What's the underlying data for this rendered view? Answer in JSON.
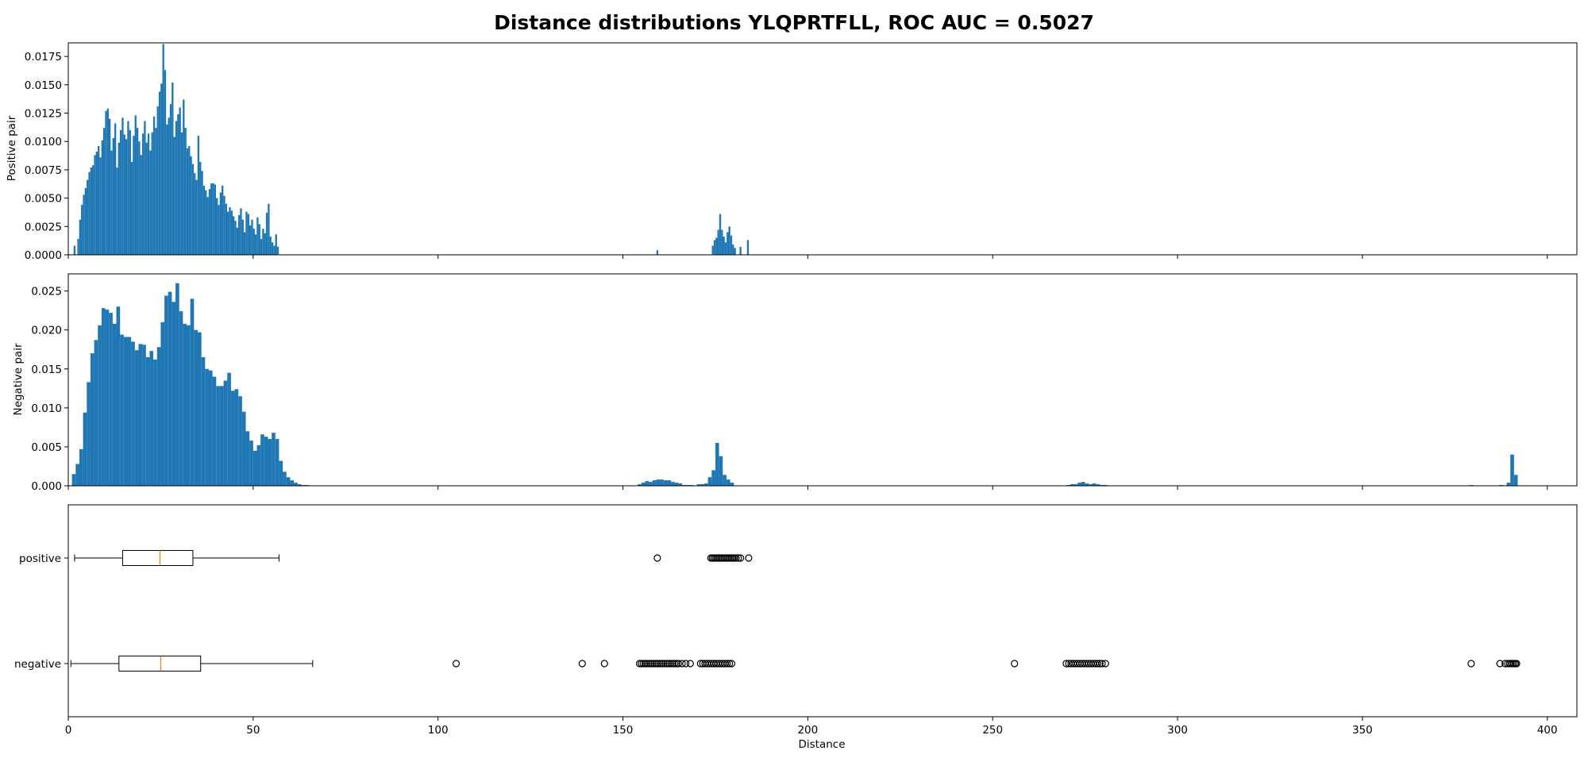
{
  "title": "Distance distributions YLQPRTFLL, ROC AUC = 0.5027",
  "chart_data": [
    {
      "type": "histogram",
      "panel": "positive-histogram",
      "ylabel": "Positive pair",
      "xlim": [
        0,
        408
      ],
      "ylim": [
        0,
        0.0187
      ],
      "yticks": [
        0.0,
        0.0025,
        0.005,
        0.0075,
        0.01,
        0.0125,
        0.015,
        0.0175
      ],
      "ytick_labels": [
        "0.0000",
        "0.0025",
        "0.0050",
        "0.0075",
        "0.0100",
        "0.0125",
        "0.0150",
        "0.0175"
      ],
      "bin_width": 0.5,
      "bars": [
        [
          1.7,
          0.0008
        ],
        [
          2.7,
          0.0014
        ],
        [
          3.2,
          0.0031
        ],
        [
          3.7,
          0.0044
        ],
        [
          4.2,
          0.0053
        ],
        [
          4.7,
          0.0059
        ],
        [
          5.2,
          0.0066
        ],
        [
          5.7,
          0.0073
        ],
        [
          6.2,
          0.0077
        ],
        [
          6.7,
          0.0079
        ],
        [
          7.2,
          0.0088
        ],
        [
          7.7,
          0.0091
        ],
        [
          8.2,
          0.0096
        ],
        [
          8.7,
          0.0086
        ],
        [
          9.2,
          0.0101
        ],
        [
          9.7,
          0.0112
        ],
        [
          10.2,
          0.0127
        ],
        [
          10.7,
          0.0129
        ],
        [
          11.2,
          0.012
        ],
        [
          11.7,
          0.0092
        ],
        [
          12.2,
          0.0103
        ],
        [
          12.7,
          0.0116
        ],
        [
          13.2,
          0.0077
        ],
        [
          13.7,
          0.0099
        ],
        [
          14.2,
          0.011
        ],
        [
          14.7,
          0.0121
        ],
        [
          15.2,
          0.0106
        ],
        [
          15.7,
          0.0102
        ],
        [
          16.2,
          0.0118
        ],
        [
          16.7,
          0.011
        ],
        [
          17.2,
          0.0082
        ],
        [
          17.7,
          0.0105
        ],
        [
          18.2,
          0.0123
        ],
        [
          18.7,
          0.0112
        ],
        [
          19.2,
          0.01
        ],
        [
          19.7,
          0.0088
        ],
        [
          20.2,
          0.0107
        ],
        [
          20.7,
          0.0118
        ],
        [
          21.2,
          0.0099
        ],
        [
          21.7,
          0.0107
        ],
        [
          22.2,
          0.0092
        ],
        [
          22.7,
          0.0108
        ],
        [
          23.2,
          0.0122
        ],
        [
          23.7,
          0.0112
        ],
        [
          24.2,
          0.0131
        ],
        [
          24.7,
          0.0144
        ],
        [
          25.2,
          0.0151
        ],
        [
          25.7,
          0.0186
        ],
        [
          26.2,
          0.0163
        ],
        [
          26.7,
          0.0115
        ],
        [
          27.2,
          0.0121
        ],
        [
          27.7,
          0.0133
        ],
        [
          28.2,
          0.0152
        ],
        [
          28.7,
          0.0104
        ],
        [
          29.2,
          0.0118
        ],
        [
          29.7,
          0.0124
        ],
        [
          30.2,
          0.013
        ],
        [
          30.7,
          0.0108
        ],
        [
          31.2,
          0.0137
        ],
        [
          31.7,
          0.0112
        ],
        [
          32.2,
          0.0094
        ],
        [
          32.7,
          0.0096
        ],
        [
          33.2,
          0.0087
        ],
        [
          33.7,
          0.008
        ],
        [
          34.2,
          0.0072
        ],
        [
          34.7,
          0.0066
        ],
        [
          35.2,
          0.0105
        ],
        [
          35.7,
          0.0082
        ],
        [
          36.2,
          0.0074
        ],
        [
          36.7,
          0.0061
        ],
        [
          37.2,
          0.0057
        ],
        [
          37.7,
          0.0051
        ],
        [
          38.2,
          0.0058
        ],
        [
          38.7,
          0.0063
        ],
        [
          39.2,
          0.0063
        ],
        [
          39.7,
          0.0062
        ],
        [
          40.2,
          0.005
        ],
        [
          40.7,
          0.0044
        ],
        [
          41.2,
          0.0055
        ],
        [
          41.7,
          0.0061
        ],
        [
          42.2,
          0.0052
        ],
        [
          42.7,
          0.0045
        ],
        [
          43.2,
          0.0038
        ],
        [
          43.7,
          0.0042
        ],
        [
          44.2,
          0.0039
        ],
        [
          44.7,
          0.0034
        ],
        [
          45.2,
          0.003
        ],
        [
          45.7,
          0.0024
        ],
        [
          46.2,
          0.0035
        ],
        [
          46.7,
          0.0041
        ],
        [
          47.2,
          0.0031
        ],
        [
          47.7,
          0.002
        ],
        [
          48.2,
          0.0038
        ],
        [
          48.7,
          0.0036
        ],
        [
          49.2,
          0.0026
        ],
        [
          49.7,
          0.0031
        ],
        [
          50.2,
          0.0023
        ],
        [
          50.7,
          0.0018
        ],
        [
          51.2,
          0.0033
        ],
        [
          51.7,
          0.0027
        ],
        [
          52.2,
          0.0014
        ],
        [
          52.7,
          0.0023
        ],
        [
          53.2,
          0.0019
        ],
        [
          53.7,
          0.0037
        ],
        [
          54.2,
          0.0045
        ],
        [
          54.7,
          0.0016
        ],
        [
          55.2,
          0.0011
        ],
        [
          55.7,
          0.0008
        ],
        [
          56.2,
          0.0018
        ],
        [
          56.7,
          0.0007
        ],
        [
          159.3,
          0.0004
        ],
        [
          174.3,
          0.0008
        ],
        [
          174.8,
          0.0013
        ],
        [
          175.3,
          0.0015
        ],
        [
          175.8,
          0.0022
        ],
        [
          176.3,
          0.0036
        ],
        [
          176.8,
          0.0022
        ],
        [
          177.3,
          0.0016
        ],
        [
          177.8,
          0.0011
        ],
        [
          178.3,
          0.002
        ],
        [
          178.8,
          0.0025
        ],
        [
          179.3,
          0.0017
        ],
        [
          179.8,
          0.0009
        ],
        [
          180.3,
          0.0006
        ],
        [
          181.8,
          0.0007
        ],
        [
          183.8,
          0.0013
        ]
      ]
    },
    {
      "type": "histogram",
      "panel": "negative-histogram",
      "ylabel": "Negative pair",
      "xlim": [
        0,
        408
      ],
      "ylim": [
        0,
        0.0272
      ],
      "yticks": [
        0.0,
        0.005,
        0.01,
        0.015,
        0.02,
        0.025
      ],
      "ytick_labels": [
        "0.000",
        "0.005",
        "0.010",
        "0.015",
        "0.020",
        "0.025"
      ],
      "bin_width": 1.0,
      "bars": [
        [
          1.5,
          0.0015
        ],
        [
          2.5,
          0.0028
        ],
        [
          3.5,
          0.0047
        ],
        [
          4.5,
          0.0094
        ],
        [
          5.5,
          0.0133
        ],
        [
          6.5,
          0.017
        ],
        [
          7.5,
          0.0187
        ],
        [
          8.5,
          0.0206
        ],
        [
          9.5,
          0.0228
        ],
        [
          10.5,
          0.0226
        ],
        [
          11.5,
          0.0222
        ],
        [
          12.5,
          0.0208
        ],
        [
          13.5,
          0.023
        ],
        [
          14.5,
          0.0194
        ],
        [
          15.5,
          0.0191
        ],
        [
          16.5,
          0.0191
        ],
        [
          17.5,
          0.0185
        ],
        [
          18.5,
          0.0174
        ],
        [
          19.5,
          0.0182
        ],
        [
          20.5,
          0.0181
        ],
        [
          21.5,
          0.0165
        ],
        [
          22.5,
          0.0173
        ],
        [
          23.5,
          0.0162
        ],
        [
          24.5,
          0.0178
        ],
        [
          25.5,
          0.021
        ],
        [
          26.5,
          0.0244
        ],
        [
          27.5,
          0.0249
        ],
        [
          28.5,
          0.0236
        ],
        [
          29.5,
          0.026
        ],
        [
          30.5,
          0.0224
        ],
        [
          31.5,
          0.0208
        ],
        [
          32.5,
          0.0206
        ],
        [
          33.5,
          0.024
        ],
        [
          34.5,
          0.02
        ],
        [
          35.5,
          0.0197
        ],
        [
          36.5,
          0.0165
        ],
        [
          37.5,
          0.015
        ],
        [
          38.5,
          0.0148
        ],
        [
          39.5,
          0.014
        ],
        [
          40.5,
          0.0128
        ],
        [
          41.5,
          0.0128
        ],
        [
          42.5,
          0.0135
        ],
        [
          43.5,
          0.0145
        ],
        [
          44.5,
          0.0122
        ],
        [
          45.5,
          0.0124
        ],
        [
          46.5,
          0.0115
        ],
        [
          47.5,
          0.0095
        ],
        [
          48.5,
          0.007
        ],
        [
          49.5,
          0.0058
        ],
        [
          50.5,
          0.0045
        ],
        [
          51.5,
          0.0052
        ],
        [
          52.5,
          0.0066
        ],
        [
          53.5,
          0.0063
        ],
        [
          54.5,
          0.006
        ],
        [
          55.5,
          0.0068
        ],
        [
          56.5,
          0.006
        ],
        [
          57.5,
          0.0032
        ],
        [
          58.5,
          0.0018
        ],
        [
          59.5,
          0.0011
        ],
        [
          60.5,
          0.0007
        ],
        [
          61.5,
          0.0004
        ],
        [
          62.5,
          0.0002
        ],
        [
          63.5,
          0.0001
        ],
        [
          64.5,
          0.0001
        ],
        [
          154.5,
          0.0002
        ],
        [
          155.5,
          0.0004
        ],
        [
          156.5,
          0.0006
        ],
        [
          157.5,
          0.0005
        ],
        [
          158.5,
          0.0007
        ],
        [
          159.5,
          0.0008
        ],
        [
          160.5,
          0.0008
        ],
        [
          161.5,
          0.0007
        ],
        [
          162.5,
          0.0007
        ],
        [
          163.5,
          0.0005
        ],
        [
          164.5,
          0.0004
        ],
        [
          165.5,
          0.0003
        ],
        [
          166.5,
          0.0001
        ],
        [
          167.5,
          0.0001
        ],
        [
          168.5,
          0.0001
        ],
        [
          170.5,
          0.0002
        ],
        [
          171.5,
          0.0002
        ],
        [
          172.5,
          0.0003
        ],
        [
          173.5,
          0.0011
        ],
        [
          174.5,
          0.002
        ],
        [
          175.5,
          0.0055
        ],
        [
          176.5,
          0.0038
        ],
        [
          177.5,
          0.0014
        ],
        [
          178.5,
          0.0008
        ],
        [
          179.5,
          0.0004
        ],
        [
          270.5,
          0.0001
        ],
        [
          271.5,
          0.0002
        ],
        [
          272.5,
          0.0002
        ],
        [
          273.5,
          0.0004
        ],
        [
          274.5,
          0.0005
        ],
        [
          275.5,
          0.0003
        ],
        [
          276.5,
          0.0002
        ],
        [
          277.5,
          0.0003
        ],
        [
          278.5,
          0.0002
        ],
        [
          279.5,
          0.0001
        ],
        [
          280.5,
          0.0001
        ],
        [
          379.5,
          0.0001
        ],
        [
          387.5,
          0.0001
        ],
        [
          389.5,
          0.0004
        ],
        [
          390.5,
          0.004
        ],
        [
          391.5,
          0.0014
        ]
      ]
    },
    {
      "type": "boxplot",
      "panel": "boxplot",
      "xlabel": "Distance",
      "xlim": [
        0,
        408
      ],
      "xticks": [
        0,
        50,
        100,
        150,
        200,
        250,
        300,
        350,
        400
      ],
      "xtick_labels": [
        "0",
        "50",
        "100",
        "150",
        "200",
        "250",
        "300",
        "350",
        "400"
      ],
      "categories": [
        "positive",
        "negative"
      ],
      "boxes": [
        {
          "name": "positive",
          "whisker_low": 1.7,
          "q1": 14.7,
          "median": 24.8,
          "q3": 33.7,
          "whisker_high": 57.0,
          "outliers": [
            159.3,
            173.8,
            174.2,
            174.6,
            175.0,
            175.4,
            175.8,
            176.2,
            176.6,
            177.0,
            177.4,
            177.8,
            178.2,
            178.6,
            179.0,
            179.4,
            179.8,
            180.2,
            180.6,
            181.2,
            181.8,
            184.0
          ]
        },
        {
          "name": "negative",
          "whisker_low": 0.7,
          "q1": 13.7,
          "median": 25.0,
          "q3": 35.8,
          "whisker_high": 66.1,
          "outliers": [
            104.9,
            139.0,
            145.0,
            154.5,
            155.0,
            155.5,
            156.0,
            156.5,
            157.0,
            157.5,
            158.0,
            158.5,
            159.0,
            159.5,
            160.0,
            160.5,
            161.0,
            161.5,
            162.0,
            162.5,
            163.0,
            163.5,
            164.0,
            164.5,
            165.0,
            166.0,
            167.0,
            168.2,
            171.0,
            171.6,
            172.2,
            172.8,
            173.4,
            174.0,
            174.6,
            175.2,
            175.8,
            176.4,
            177.0,
            177.6,
            178.2,
            178.8,
            179.4,
            255.9,
            269.9,
            270.6,
            271.2,
            271.8,
            272.4,
            273.0,
            273.6,
            274.2,
            274.8,
            275.4,
            276.0,
            276.6,
            277.2,
            277.8,
            278.4,
            279.0,
            279.6,
            280.5,
            379.4,
            387.2,
            388.6,
            389.3,
            389.8,
            390.2,
            390.6,
            391.0,
            391.4,
            391.7
          ]
        }
      ]
    }
  ],
  "colors": {
    "bar": "#1f77b4",
    "median": "#ff7f0e",
    "axis": "#000000"
  }
}
